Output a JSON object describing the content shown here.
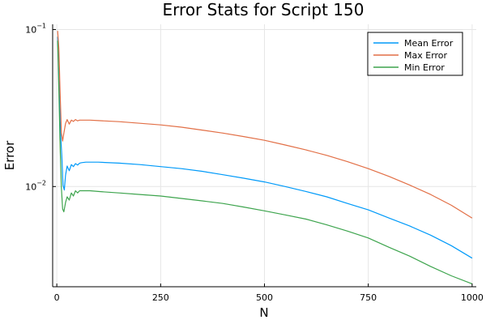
{
  "chart_data": {
    "type": "line",
    "title": "Error Stats for Script 150",
    "xlabel": "N",
    "ylabel": "Error",
    "y_scale": "log10",
    "xlim": [
      -10,
      1010
    ],
    "ylim": [
      0.0023,
      0.108
    ],
    "x_ticks": [
      0,
      250,
      500,
      750,
      1000
    ],
    "y_ticks": [
      {
        "value": 0.01,
        "base": "10",
        "exp": "−2"
      },
      {
        "value": 0.1,
        "base": "10",
        "exp": "−1"
      }
    ],
    "grid": true,
    "legend_position": "top-right",
    "series": [
      {
        "name": "Mean Error",
        "color": "#009af9",
        "x": [
          2,
          5,
          9,
          12,
          15,
          18,
          21,
          25,
          30,
          35,
          40,
          45,
          50,
          55,
          60,
          70,
          80,
          100,
          150,
          200,
          250,
          300,
          350,
          400,
          450,
          500,
          550,
          600,
          650,
          700,
          750,
          800,
          850,
          900,
          950,
          1000
        ],
        "y": [
          0.09,
          0.05,
          0.022,
          0.0158,
          0.0102,
          0.0095,
          0.0118,
          0.0135,
          0.0126,
          0.0138,
          0.0134,
          0.014,
          0.0137,
          0.0141,
          0.0142,
          0.0143,
          0.0143,
          0.0143,
          0.0141,
          0.0138,
          0.0134,
          0.013,
          0.0125,
          0.0119,
          0.0113,
          0.0107,
          0.01,
          0.0093,
          0.0086,
          0.0078,
          0.0071,
          0.0063,
          0.0056,
          0.0049,
          0.0042,
          0.0035
        ]
      },
      {
        "name": "Max Error",
        "color": "#e26f46",
        "x": [
          2,
          5,
          8,
          11,
          14,
          17,
          21,
          25,
          30,
          35,
          40,
          45,
          50,
          55,
          60,
          70,
          80,
          100,
          150,
          200,
          250,
          300,
          350,
          400,
          450,
          500,
          550,
          600,
          650,
          700,
          750,
          800,
          850,
          900,
          950,
          1000
        ],
        "y": [
          0.098,
          0.075,
          0.04,
          0.022,
          0.0195,
          0.0218,
          0.0252,
          0.0267,
          0.025,
          0.0265,
          0.026,
          0.0267,
          0.0262,
          0.0265,
          0.0265,
          0.0265,
          0.0265,
          0.0263,
          0.0259,
          0.0253,
          0.0247,
          0.0239,
          0.0229,
          0.0219,
          0.0208,
          0.0197,
          0.0184,
          0.0171,
          0.0158,
          0.0144,
          0.013,
          0.0116,
          0.0102,
          0.0089,
          0.0076,
          0.0063
        ]
      },
      {
        "name": "Min Error",
        "color": "#3da44d",
        "x": [
          2,
          5,
          8,
          11,
          14,
          17,
          21,
          25,
          30,
          35,
          40,
          45,
          50,
          55,
          60,
          70,
          80,
          100,
          150,
          200,
          250,
          300,
          350,
          400,
          450,
          500,
          550,
          600,
          650,
          700,
          750,
          800,
          850,
          900,
          950,
          1000
        ],
        "y": [
          0.085,
          0.04,
          0.018,
          0.0098,
          0.0072,
          0.0069,
          0.0079,
          0.0086,
          0.0082,
          0.0091,
          0.0087,
          0.0094,
          0.0091,
          0.0094,
          0.0094,
          0.0094,
          0.0094,
          0.0093,
          0.0091,
          0.0089,
          0.0087,
          0.0084,
          0.0081,
          0.0078,
          0.0074,
          0.007,
          0.0066,
          0.0062,
          0.0057,
          0.0052,
          0.0047,
          0.0041,
          0.0036,
          0.0031,
          0.0027,
          0.0024
        ]
      }
    ]
  }
}
